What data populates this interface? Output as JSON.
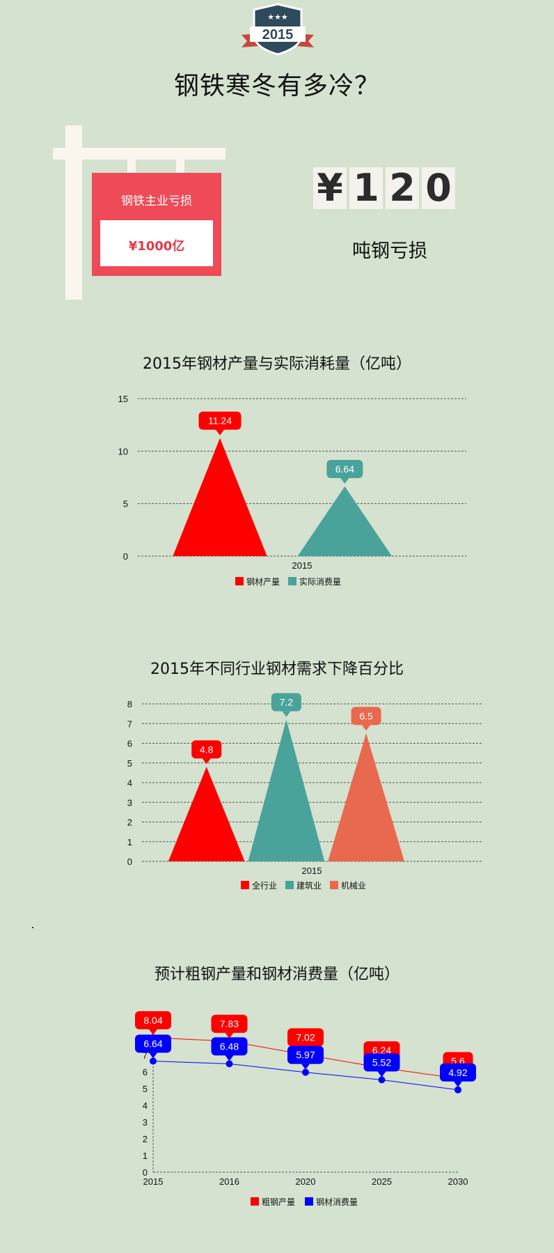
{
  "badge": {
    "stars": "★★★",
    "year": "2015"
  },
  "title": "钢铁寒冬有多冷？",
  "sign": {
    "title": "钢铁主业亏损",
    "value": "¥1000亿"
  },
  "price": {
    "digits": [
      "¥",
      "1",
      "2",
      "0"
    ],
    "caption": "吨钢亏损"
  },
  "colors": {
    "red": "#ff0000",
    "teal": "#4aa39a",
    "orange": "#e8694e",
    "blue": "#0000ff",
    "board": "#ee4a57"
  },
  "chart_data": [
    {
      "type": "bar",
      "title": "2015年钢材产量与实际消耗量（亿吨）",
      "categories": [
        "2015"
      ],
      "series": [
        {
          "name": "钢材产量",
          "values": [
            11.24
          ],
          "color": "#ff0000"
        },
        {
          "name": "实际消费量",
          "values": [
            6.64
          ],
          "color": "#4aa39a"
        }
      ],
      "ylim": [
        0,
        15
      ],
      "yticks": [
        "0",
        "5",
        "10",
        "15"
      ],
      "data_labels": [
        "11.24",
        "6.64"
      ],
      "grid": true,
      "legend": "bottom"
    },
    {
      "type": "bar",
      "title": "2015年不同行业钢材需求下降百分比",
      "categories": [
        "2015"
      ],
      "series": [
        {
          "name": "全行业",
          "values": [
            4.8
          ],
          "color": "#ff0000"
        },
        {
          "name": "建筑业",
          "values": [
            7.2
          ],
          "color": "#4aa39a"
        },
        {
          "name": "机械业",
          "values": [
            6.5
          ],
          "color": "#e8694e"
        }
      ],
      "ylim": [
        0,
        8
      ],
      "yticks": [
        "0",
        "1",
        "2",
        "3",
        "4",
        "5",
        "6",
        "7",
        "8"
      ],
      "data_labels": [
        "4.8",
        "7.2",
        "6.5"
      ],
      "grid": true,
      "legend": "bottom"
    },
    {
      "type": "line",
      "title": "预计粗钢产量和钢材消费量（亿吨）",
      "x": [
        "2015",
        "2016",
        "2020",
        "2025",
        "2030"
      ],
      "series": [
        {
          "name": "粗钢产量",
          "values": [
            8.04,
            7.83,
            7.02,
            6.24,
            5.6
          ],
          "labels": [
            "8.04",
            "7.83",
            "7.02",
            "6.24",
            "5.6"
          ],
          "color": "#ff0000"
        },
        {
          "name": "钢材消费量",
          "values": [
            6.64,
            6.48,
            5.97,
            5.52,
            4.92
          ],
          "labels": [
            "6.64",
            "6.48",
            "5.97",
            "5.52",
            "4.92"
          ],
          "color": "#0000ff"
        }
      ],
      "ylim": [
        0,
        8
      ],
      "yticks": [
        "0",
        "1",
        "2",
        "3",
        "4",
        "5",
        "6",
        "7"
      ],
      "grid": false,
      "legend": "bottom"
    }
  ]
}
